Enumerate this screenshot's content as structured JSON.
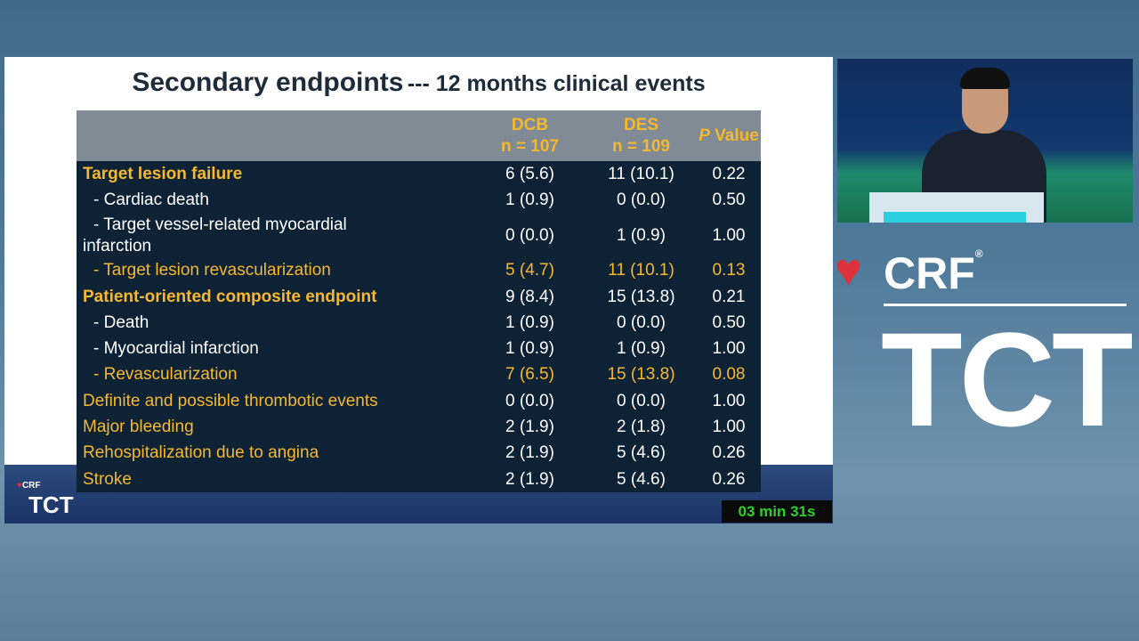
{
  "slide": {
    "title": "Secondary endpoints",
    "subtitle": "--- 12 months clinical events",
    "table": {
      "columns": [
        {
          "name": "DCB",
          "n": "n = 107"
        },
        {
          "name": "DES",
          "n": "n = 109"
        }
      ],
      "p_header": {
        "italic": "P",
        "rest": "Value"
      },
      "rows": [
        [
          "Target lesion failure",
          "6 (5.6)",
          "11 (10.1)",
          "0.22"
        ],
        [
          "- Cardiac death",
          "1 (0.9)",
          "0 (0.0)",
          "0.50"
        ],
        [
          "- Target vessel-related myocardial infarction",
          "0 (0.0)",
          "1 (0.9)",
          "1.00"
        ],
        [
          "- Target lesion revascularization",
          "5 (4.7)",
          "11 (10.1)",
          "0.13"
        ],
        [
          "Patient-oriented composite endpoint",
          "9 (8.4)",
          "15 (13.8)",
          "0.21"
        ],
        [
          "- Death",
          "1 (0.9)",
          "0 (0.0)",
          "0.50"
        ],
        [
          "- Myocardial infarction",
          "1 (0.9)",
          "1 (0.9)",
          "1.00"
        ],
        [
          "- Revascularization",
          "7 (6.5)",
          "15 (13.8)",
          "0.08"
        ],
        [
          "Definite and possible thrombotic events",
          "0 (0.0)",
          "0 (0.0)",
          "1.00"
        ],
        [
          "Major bleeding",
          "2 (1.9)",
          "2 (1.8)",
          "1.00"
        ],
        [
          "Rehospitalization due to angina",
          "2 (1.9)",
          "5 (4.6)",
          "0.26"
        ],
        [
          "Stroke",
          "2 (1.9)",
          "5 (4.6)",
          "0.26"
        ]
      ]
    },
    "logo": {
      "crf": "CRF",
      "tct": "TCT"
    },
    "timer": "03 min 31s"
  },
  "brand": {
    "crf": "CRF",
    "registered": "®",
    "tct": "TCT"
  }
}
